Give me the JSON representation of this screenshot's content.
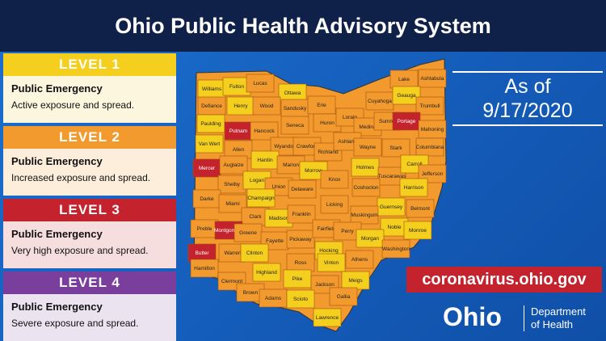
{
  "header": {
    "title": "Ohio Public Health Advisory System"
  },
  "levels": [
    {
      "label": "LEVEL 1",
      "heading": "Public Emergency",
      "description": "Active exposure and spread.",
      "color": "#f5cf1e",
      "body": "#fdf6df"
    },
    {
      "label": "LEVEL 2",
      "heading": "Public Emergency",
      "description": "Increased exposure and spread.",
      "color": "#f29a2e",
      "body": "#fdeedb"
    },
    {
      "label": "LEVEL 3",
      "heading": "Public Emergency",
      "description": "Very high exposure and spread.",
      "color": "#c4232d",
      "body": "#f7dede"
    },
    {
      "label": "LEVEL 4",
      "heading": "Public Emergency",
      "description": "Severe exposure and spread.",
      "color": "#7a3e9d",
      "body": "#ece3f1"
    }
  ],
  "date": {
    "prefix": "As of",
    "date": "9/17/2020"
  },
  "website": "coronavirus.ohio.gov",
  "logo": {
    "wordmark": "Ohio",
    "department": "Department",
    "of_health": "of Health"
  },
  "map": {
    "counties": [
      {
        "name": "Williams",
        "level": 1
      },
      {
        "name": "Fulton",
        "level": 1
      },
      {
        "name": "Lucas",
        "level": 2
      },
      {
        "name": "Ottawa",
        "level": 1
      },
      {
        "name": "Lake",
        "level": 2
      },
      {
        "name": "Ashtabula",
        "level": 2
      },
      {
        "name": "Defiance",
        "level": 2
      },
      {
        "name": "Henry",
        "level": 1
      },
      {
        "name": "Wood",
        "level": 2
      },
      {
        "name": "Sandusky",
        "level": 2
      },
      {
        "name": "Erie",
        "level": 2
      },
      {
        "name": "Cuyahoga",
        "level": 2
      },
      {
        "name": "Geauga",
        "level": 1
      },
      {
        "name": "Trumbull",
        "level": 2
      },
      {
        "name": "Paulding",
        "level": 1
      },
      {
        "name": "Putnam",
        "level": 3
      },
      {
        "name": "Hancock",
        "level": 2
      },
      {
        "name": "Seneca",
        "level": 2
      },
      {
        "name": "Huron",
        "level": 2
      },
      {
        "name": "Lorain",
        "level": 2
      },
      {
        "name": "Medina",
        "level": 2
      },
      {
        "name": "Summit",
        "level": 2
      },
      {
        "name": "Portage",
        "level": 3
      },
      {
        "name": "Mahoning",
        "level": 2
      },
      {
        "name": "Van Wert",
        "level": 1
      },
      {
        "name": "Allen",
        "level": 2
      },
      {
        "name": "Wyandot",
        "level": 2
      },
      {
        "name": "Crawford",
        "level": 2
      },
      {
        "name": "Richland",
        "level": 2
      },
      {
        "name": "Ashland",
        "level": 2
      },
      {
        "name": "Wayne",
        "level": 2
      },
      {
        "name": "Stark",
        "level": 2
      },
      {
        "name": "Columbiana",
        "level": 2
      },
      {
        "name": "Mercer",
        "level": 3
      },
      {
        "name": "Auglaize",
        "level": 2
      },
      {
        "name": "Hardin",
        "level": 1
      },
      {
        "name": "Marion",
        "level": 2
      },
      {
        "name": "Morrow",
        "level": 1
      },
      {
        "name": "Knox",
        "level": 2
      },
      {
        "name": "Holmes",
        "level": 1
      },
      {
        "name": "Tuscarawas",
        "level": 2
      },
      {
        "name": "Carroll",
        "level": 1
      },
      {
        "name": "Jefferson",
        "level": 2
      },
      {
        "name": "Shelby",
        "level": 2
      },
      {
        "name": "Logan",
        "level": 1
      },
      {
        "name": "Union",
        "level": 2
      },
      {
        "name": "Delaware",
        "level": 2
      },
      {
        "name": "Coshocton",
        "level": 2
      },
      {
        "name": "Harrison",
        "level": 1
      },
      {
        "name": "Darke",
        "level": 2
      },
      {
        "name": "Miami",
        "level": 2
      },
      {
        "name": "Champaign",
        "level": 1
      },
      {
        "name": "Licking",
        "level": 2
      },
      {
        "name": "Guernsey",
        "level": 1
      },
      {
        "name": "Belmont",
        "level": 2
      },
      {
        "name": "Clark",
        "level": 2
      },
      {
        "name": "Madison",
        "level": 1
      },
      {
        "name": "Franklin",
        "level": 2
      },
      {
        "name": "Muskingum",
        "level": 2
      },
      {
        "name": "Noble",
        "level": 1
      },
      {
        "name": "Monroe",
        "level": 1
      },
      {
        "name": "Preble",
        "level": 2
      },
      {
        "name": "Montgomery",
        "level": 3
      },
      {
        "name": "Greene",
        "level": 2
      },
      {
        "name": "Fayette",
        "level": 2
      },
      {
        "name": "Pickaway",
        "level": 2
      },
      {
        "name": "Fairfield",
        "level": 2
      },
      {
        "name": "Perry",
        "level": 2
      },
      {
        "name": "Morgan",
        "level": 1
      },
      {
        "name": "Butler",
        "level": 3
      },
      {
        "name": "Warren",
        "level": 2
      },
      {
        "name": "Clinton",
        "level": 1
      },
      {
        "name": "Hocking",
        "level": 1
      },
      {
        "name": "Athens",
        "level": 2
      },
      {
        "name": "Washington",
        "level": 2
      },
      {
        "name": "Hamilton",
        "level": 2
      },
      {
        "name": "Highland",
        "level": 1
      },
      {
        "name": "Ross",
        "level": 2
      },
      {
        "name": "Vinton",
        "level": 1
      },
      {
        "name": "Clermont",
        "level": 2
      },
      {
        "name": "Pike",
        "level": 1
      },
      {
        "name": "Jackson",
        "level": 2
      },
      {
        "name": "Meigs",
        "level": 1
      },
      {
        "name": "Brown",
        "level": 2
      },
      {
        "name": "Adams",
        "level": 2
      },
      {
        "name": "Scioto",
        "level": 1
      },
      {
        "name": "Gallia",
        "level": 2
      },
      {
        "name": "Lawrence",
        "level": 1
      }
    ]
  }
}
